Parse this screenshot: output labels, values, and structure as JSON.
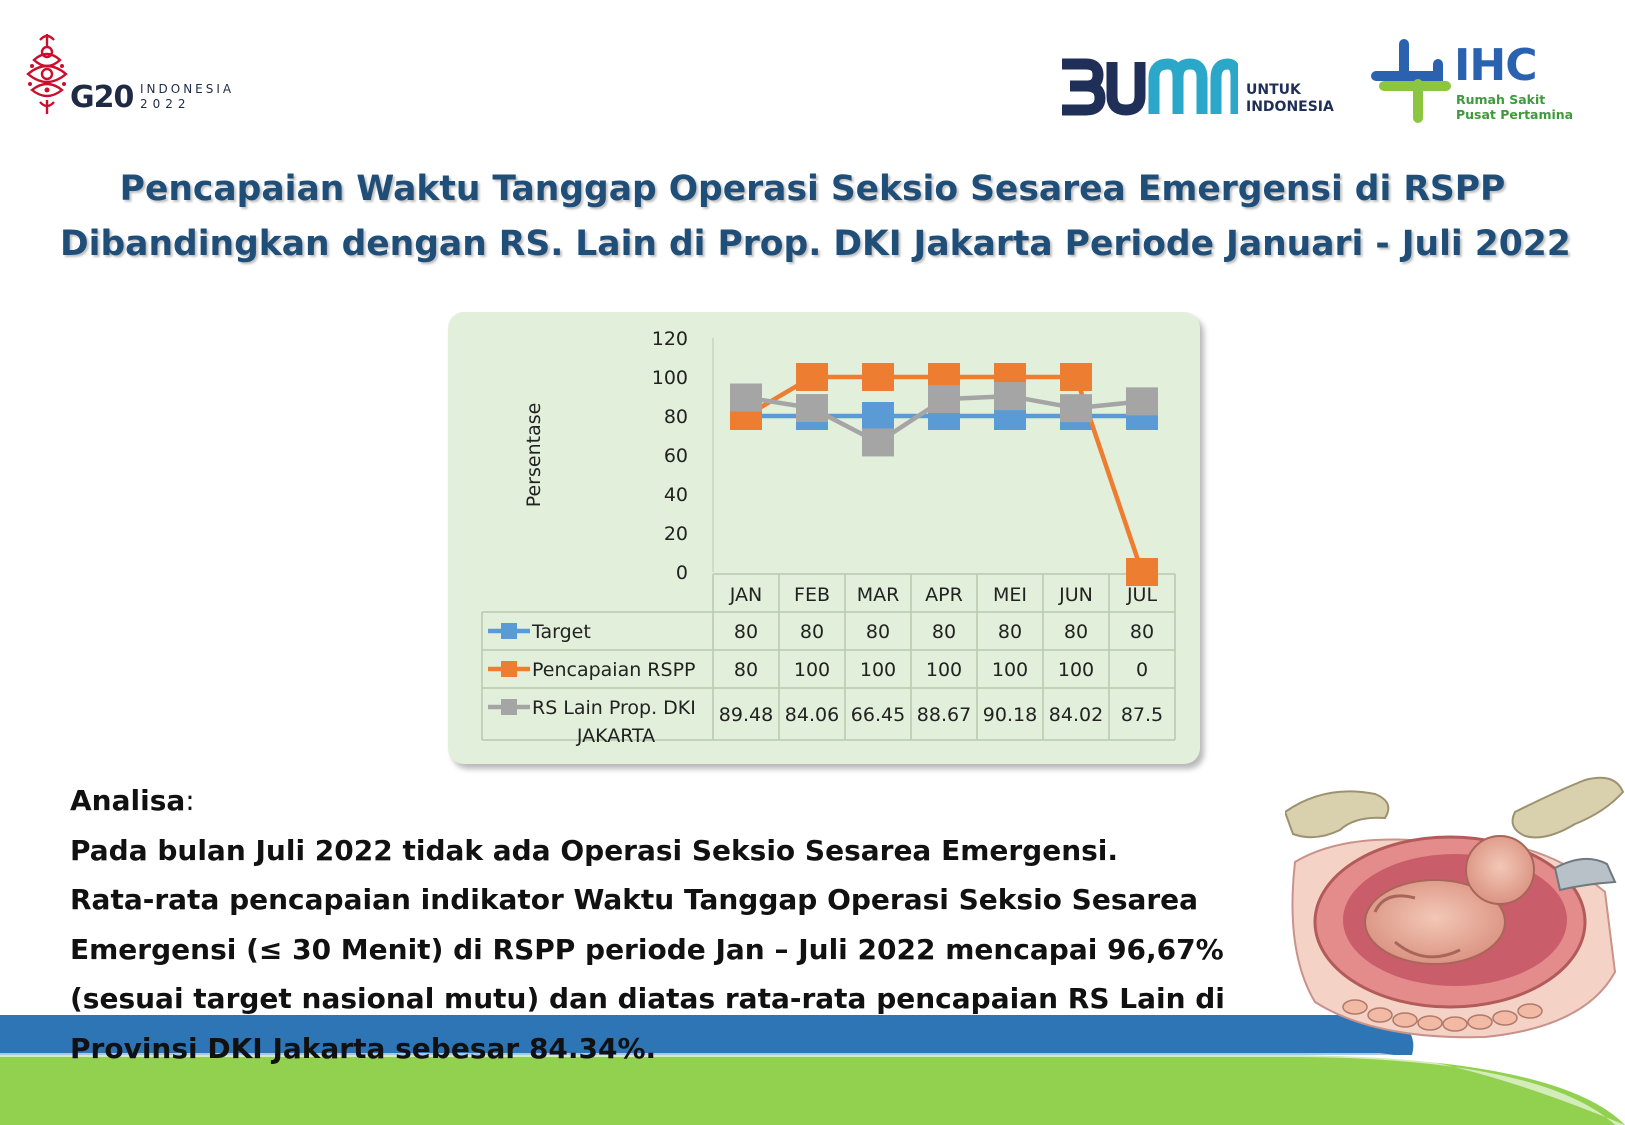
{
  "logos": {
    "g20": {
      "main": "G20",
      "line1": "INDONESIA",
      "line2": "2022",
      "color": "#c8102e"
    },
    "bumn": {
      "main": "BUMN",
      "line1": "UNTUK",
      "line2": "INDONESIA",
      "color": "#1f2f57"
    },
    "ihc": {
      "main": "IHC",
      "line1": "Rumah Sakit",
      "line2": "Pusat Pertamina",
      "color": "#2a62b0"
    }
  },
  "title": {
    "line1": "Pencapaian Waktu Tanggap Operasi Seksio Sesarea Emergensi di RSPP",
    "line2": "Dibandingkan dengan RS. Lain di Prop. DKI Jakarta Periode Januari - Juli 2022"
  },
  "chart_data": {
    "type": "line",
    "categories": [
      "JAN",
      "FEB",
      "MAR",
      "APR",
      "MEI",
      "JUN",
      "JUL"
    ],
    "ylabel": "Persentase",
    "ylim": [
      0,
      120
    ],
    "yticks": [
      0,
      20,
      40,
      60,
      80,
      100,
      120
    ],
    "grid": false,
    "legend": "data-table",
    "series": [
      {
        "name": "Target",
        "values": [
          80,
          80,
          80,
          80,
          80,
          80,
          80
        ],
        "labels": [
          "80",
          "80",
          "80",
          "80",
          "80",
          "80",
          "80"
        ],
        "color": "#5b9bd5"
      },
      {
        "name": "Pencapaian RSPP",
        "values": [
          80,
          100,
          100,
          100,
          100,
          100,
          0
        ],
        "labels": [
          "80",
          "100",
          "100",
          "100",
          "100",
          "100",
          "0"
        ],
        "color": "#ed7d31"
      },
      {
        "name": "RS Lain Prop. DKI JAKARTA",
        "name_line1": "RS Lain Prop. DKI",
        "name_line2": "JAKARTA",
        "values": [
          89.48,
          84.06,
          66.45,
          88.67,
          90.18,
          84.02,
          87.5
        ],
        "labels": [
          "89.48",
          "84.06",
          "66.45",
          "88.67",
          "90.18",
          "84.02",
          "87.5"
        ],
        "color": "#a5a5a5"
      }
    ]
  },
  "analysis": {
    "heading": "Analisa",
    "colon": ":",
    "lines": [
      "Pada bulan Juli 2022 tidak ada Operasi Seksio Sesarea Emergensi.",
      "Rata-rata pencapaian indikator Waktu Tanggap Operasi Seksio Sesarea",
      "Emergensi (≤ 30 Menit) di RSPP periode Jan – Juli 2022 mencapai 96,67%",
      "(sesuai target nasional mutu) dan diatas rata-rata pencapaian RS Lain di",
      "Provinsi DKI Jakarta sebesar 84.34%."
    ]
  },
  "colors": {
    "title": "#1f4e79",
    "chart_bg": "#e2efda",
    "band_blue": "#2e75b6",
    "band_green": "#92d050"
  }
}
